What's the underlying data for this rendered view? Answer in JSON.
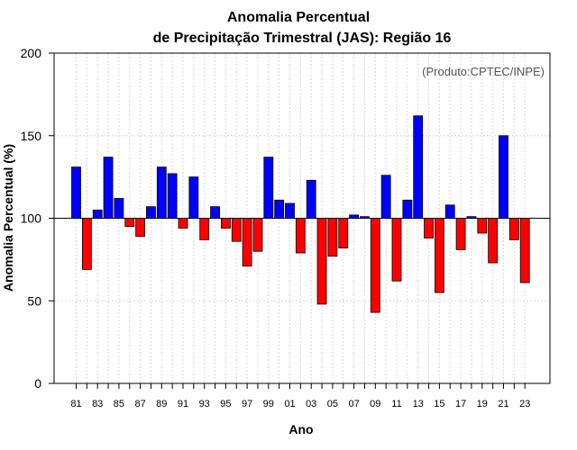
{
  "chart_data": {
    "type": "bar",
    "title": "Anomalia Percentual",
    "subtitle": "de Precipitação Trimestral (JAS): Região 16",
    "xlabel": "Ano",
    "ylabel": "Anomalia Percentual (%)",
    "credit": "(Produto:CPTEC/INPE)",
    "ylim": [
      0,
      200
    ],
    "yticks": [
      "0",
      "50",
      "100",
      "150",
      "200"
    ],
    "baseline": 100,
    "grid": true,
    "colors": {
      "above": "#0000ff",
      "below": "#ff0000",
      "border": "#000000",
      "grid": "#d8d8d8"
    },
    "categories": [
      "81",
      "82",
      "83",
      "84",
      "85",
      "86",
      "87",
      "88",
      "89",
      "90",
      "91",
      "92",
      "93",
      "94",
      "95",
      "96",
      "97",
      "98",
      "99",
      "00",
      "01",
      "02",
      "03",
      "04",
      "05",
      "06",
      "07",
      "08",
      "09",
      "10",
      "11",
      "12",
      "13",
      "14",
      "15",
      "16",
      "17",
      "18",
      "19",
      "20",
      "21",
      "22",
      "23"
    ],
    "xtick_labels": [
      "81",
      "83",
      "85",
      "87",
      "89",
      "91",
      "93",
      "95",
      "97",
      "99",
      "01",
      "03",
      "05",
      "07",
      "09",
      "11",
      "13",
      "15",
      "17",
      "19",
      "21",
      "23"
    ],
    "values": [
      131,
      69,
      105,
      137,
      112,
      95,
      89,
      107,
      131,
      127,
      94,
      125,
      87,
      107,
      94,
      86,
      71,
      80,
      137,
      111,
      109,
      79,
      123,
      48,
      77,
      82,
      102,
      101,
      43,
      126,
      62,
      111,
      162,
      88,
      55,
      108,
      81,
      101,
      91,
      73,
      150,
      87,
      61
    ]
  }
}
